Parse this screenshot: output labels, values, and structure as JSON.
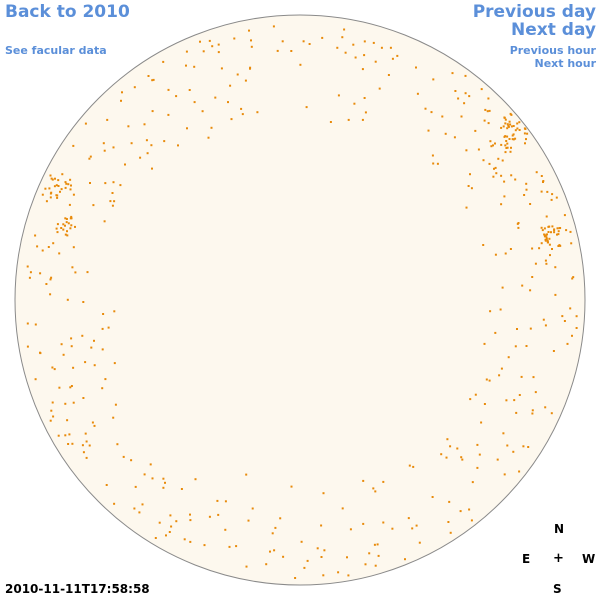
{
  "nav": {
    "back": "Back to 2010",
    "facular": "See facular data",
    "previous_day": "Previous day",
    "next_day": "Next day",
    "previous_hour": "Previous hour",
    "next_hour": "Next hour"
  },
  "timestamp": "2010-11-11T17:58:58",
  "compass": {
    "n": "N",
    "e": "E",
    "center": "+",
    "w": "W",
    "s": "S"
  },
  "colors": {
    "link": "#5b8fd9",
    "disk_fill": "#fdf8ee",
    "disk_stroke": "#8a8a8a",
    "facula": "#e88a0a"
  }
}
